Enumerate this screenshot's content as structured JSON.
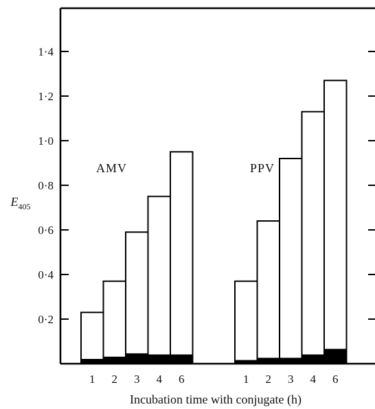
{
  "chart_data": {
    "type": "bar",
    "stacked": true,
    "xlabel": "Incubation time with conjugate (h)",
    "ylabel": "E",
    "ylabel_subscript": "405",
    "ylim": [
      0,
      1.6
    ],
    "yticks": [
      0.2,
      0.4,
      0.6,
      0.8,
      1.0,
      1.2,
      1.4
    ],
    "ytick_labels": [
      "0·2",
      "0·4",
      "0·6",
      "0·8",
      "1·0",
      "1·2",
      "1·4"
    ],
    "grid": false,
    "groups": [
      {
        "label": "AMV",
        "categories": [
          "1",
          "2",
          "3",
          "4",
          "6"
        ],
        "totals": [
          0.23,
          0.37,
          0.59,
          0.75,
          0.95
        ],
        "background": [
          0.02,
          0.03,
          0.045,
          0.04,
          0.04
        ]
      },
      {
        "label": "PPV",
        "categories": [
          "1",
          "2",
          "3",
          "4",
          "6"
        ],
        "totals": [
          0.37,
          0.64,
          0.92,
          1.13,
          1.27
        ],
        "background": [
          0.015,
          0.025,
          0.025,
          0.04,
          0.065
        ]
      }
    ],
    "colors": {
      "total": "#ffffff",
      "background": "#000000",
      "outline": "#000000"
    }
  }
}
